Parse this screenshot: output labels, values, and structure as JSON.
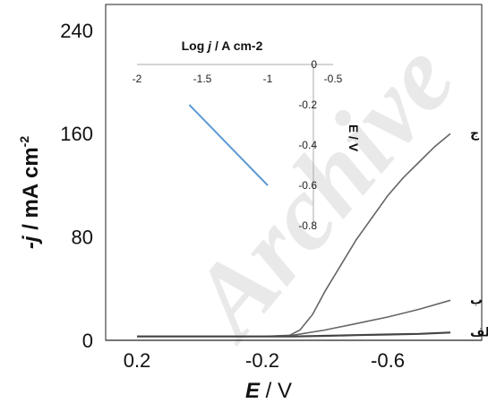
{
  "watermark": "Archive",
  "chart_data": [
    {
      "type": "line",
      "xlabel_italic": "E",
      "xlabel_rest": " / V",
      "ylabel_italic": "-j",
      "ylabel_rest": " / mA cm",
      "ylabel_sup": "-2",
      "xlim": [
        0.3,
        -0.9
      ],
      "ylim": [
        0,
        260
      ],
      "x_ticks": [
        0.2,
        -0.2,
        -0.6
      ],
      "x_tick_labels": [
        "0.2",
        "-0.2",
        "-0.6"
      ],
      "y_ticks": [
        0,
        80,
        160,
        240
      ],
      "y_tick_labels": [
        "0",
        "80",
        "160",
        "240"
      ],
      "grid": false,
      "series": [
        {
          "name": "ج",
          "x": [
            0.2,
            0.0,
            -0.2,
            -0.28,
            -0.32,
            -0.36,
            -0.4,
            -0.45,
            -0.5,
            -0.55,
            -0.6,
            -0.65,
            -0.7,
            -0.75,
            -0.8
          ],
          "y": [
            3,
            3,
            3,
            3,
            8,
            20,
            38,
            58,
            78,
            95,
            112,
            126,
            138,
            150,
            160
          ]
        },
        {
          "name": "ب",
          "x": [
            0.2,
            0.0,
            -0.2,
            -0.3,
            -0.4,
            -0.5,
            -0.6,
            -0.7,
            -0.8
          ],
          "y": [
            3,
            3,
            3,
            4,
            8,
            13,
            18,
            24,
            31
          ]
        },
        {
          "name": "الف",
          "x": [
            0.2,
            0.0,
            -0.2,
            -0.3,
            -0.4,
            -0.5,
            -0.6,
            -0.7,
            -0.8
          ],
          "y": [
            3,
            3,
            3,
            3,
            3.5,
            4,
            4.5,
            5,
            6
          ]
        }
      ]
    },
    {
      "type": "line",
      "inset": true,
      "xlabel_pre": "Log ",
      "xlabel_italic": "j",
      "xlabel_post": " / A cm-2",
      "ylabel": "E / V",
      "xlim": [
        -2,
        -0.5
      ],
      "ylim": [
        -0.8,
        0
      ],
      "x_ticks": [
        -2,
        -1.5,
        -1,
        -0.5
      ],
      "x_tick_labels": [
        "-2",
        "-1.5",
        "-1",
        "-0.5"
      ],
      "y_ticks": [
        0,
        -0.2,
        -0.4,
        -0.6,
        -0.8
      ],
      "y_tick_labels": [
        "0",
        "-0.2",
        "-0.4",
        "-0.6",
        "-0.8"
      ],
      "series": [
        {
          "x": [
            -1.6,
            -1.0
          ],
          "y": [
            -0.2,
            -0.6
          ],
          "color": "#5b9bd5"
        }
      ]
    }
  ]
}
